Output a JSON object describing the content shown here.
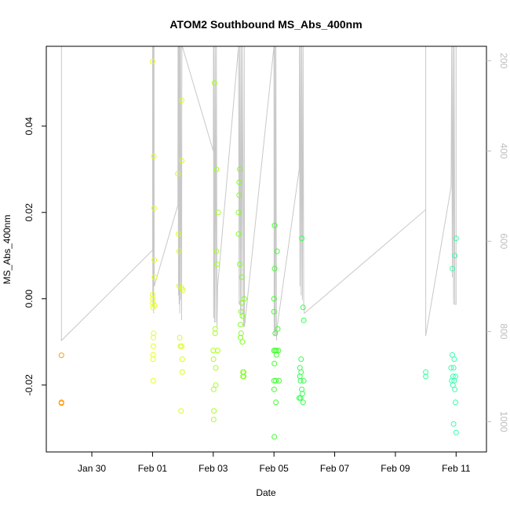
{
  "chart_data": {
    "type": "scatter",
    "title": "ATOM2 Southbound MS_Abs_400nm",
    "xlabel": "Date",
    "ylabel": "MS_Abs_400nm",
    "xlim": [
      "2024-01-28T12:00",
      "2024-02-12T00:00"
    ],
    "ylim": [
      -0.0355,
      0.0585
    ],
    "x_ticks": [
      {
        "date": "2024-01-30",
        "label": "Jan 30"
      },
      {
        "date": "2024-02-01",
        "label": "Feb 01"
      },
      {
        "date": "2024-02-03",
        "label": "Feb 03"
      },
      {
        "date": "2024-02-05",
        "label": "Feb 05"
      },
      {
        "date": "2024-02-07",
        "label": "Feb 07"
      },
      {
        "date": "2024-02-09",
        "label": "Feb 09"
      },
      {
        "date": "2024-02-11",
        "label": "Feb 11"
      }
    ],
    "y_ticks": [
      -0.02,
      0.0,
      0.02,
      0.04
    ],
    "y_tick_labels": [
      "-0.02",
      "0.00",
      "0.02",
      "0.04"
    ],
    "y2_axis": {
      "ylim": [
        1067,
        168
      ],
      "ticks": [
        200,
        400,
        600,
        800,
        1000
      ],
      "tick_labels": [
        "200",
        "400",
        "600",
        "800",
        "1000"
      ],
      "color": "#bdbdbd"
    },
    "grid": false,
    "legend": "none",
    "series": [
      {
        "color": "#ff9900",
        "points": [
          [
            "2024-01-29T00:00",
            -0.0131
          ],
          [
            "2024-01-29T00:00",
            -0.024
          ],
          [
            "2024-01-29T00:00",
            -0.0242
          ]
        ]
      },
      {
        "color": "#e6ff1a",
        "points": [
          [
            "2024-02-01T00:00",
            0.055
          ],
          [
            "2024-02-01T00:05",
            0.001
          ],
          [
            "2024-02-01T00:10",
            0.0
          ],
          [
            "2024-02-01T00:15",
            -0.001
          ],
          [
            "2024-02-01T00:20",
            -0.002
          ],
          [
            "2024-02-01T00:25",
            -0.013
          ],
          [
            "2024-02-01T00:25",
            -0.014
          ],
          [
            "2024-02-01T00:30",
            -0.019
          ],
          [
            "2024-02-01T00:35",
            -0.011
          ],
          [
            "2024-02-01T00:40",
            -0.009
          ],
          [
            "2024-02-01T00:50",
            -0.008
          ],
          [
            "2024-02-01T01:00",
            0.033
          ],
          [
            "2024-02-01T01:10",
            0.021
          ],
          [
            "2024-02-01T01:20",
            0.009
          ],
          [
            "2024-02-01T01:30",
            0.005
          ],
          [
            "2024-02-01T01:40",
            -0.0015
          ]
        ]
      },
      {
        "color": "#d4ff1a",
        "points": [
          [
            "2024-02-01T20:00",
            0.029
          ],
          [
            "2024-02-01T20:30",
            0.015
          ],
          [
            "2024-02-01T21:00",
            0.011
          ],
          [
            "2024-02-01T21:00",
            0.003
          ],
          [
            "2024-02-01T21:30",
            -0.009
          ],
          [
            "2024-02-01T22:00",
            -0.011
          ],
          [
            "2024-02-01T22:30",
            -0.026
          ],
          [
            "2024-02-01T23:00",
            0.046
          ],
          [
            "2024-02-01T23:00",
            0.032
          ],
          [
            "2024-02-01T23:00",
            -0.011
          ],
          [
            "2024-02-01T23:30",
            -0.014
          ],
          [
            "2024-02-01T23:30",
            -0.017
          ],
          [
            "2024-02-02T00:00",
            0.002
          ],
          [
            "2024-02-01T23:00",
            0.0025
          ]
        ]
      },
      {
        "color": "#a6ff1a",
        "points": [
          [
            "2024-02-03T00:00",
            -0.012
          ],
          [
            "2024-02-03T00:10",
            -0.014
          ],
          [
            "2024-02-03T00:20",
            -0.021
          ],
          [
            "2024-02-03T00:20",
            -0.028
          ],
          [
            "2024-02-03T00:30",
            -0.026
          ],
          [
            "2024-02-03T01:00",
            0.05
          ],
          [
            "2024-02-03T01:30",
            -0.007
          ],
          [
            "2024-02-03T01:30",
            -0.008
          ],
          [
            "2024-02-03T02:00",
            -0.016
          ],
          [
            "2024-02-03T02:00",
            -0.02
          ],
          [
            "2024-02-03T02:30",
            0.03
          ],
          [
            "2024-02-03T02:30",
            0.011
          ],
          [
            "2024-02-03T03:00",
            0.008
          ],
          [
            "2024-02-03T03:30",
            -0.012
          ],
          [
            "2024-02-03T04:00",
            0.02
          ]
        ]
      },
      {
        "color": "#7fff1a",
        "points": [
          [
            "2024-02-03T20:00",
            0.02
          ],
          [
            "2024-02-03T20:00",
            0.015
          ],
          [
            "2024-02-03T20:30",
            0.027
          ],
          [
            "2024-02-03T20:30",
            0.024
          ],
          [
            "2024-02-03T21:00",
            0.03
          ],
          [
            "2024-02-03T21:00",
            0.008
          ],
          [
            "2024-02-03T21:30",
            -0.006
          ],
          [
            "2024-02-03T21:30",
            -0.009
          ],
          [
            "2024-02-03T22:00",
            -0.003
          ],
          [
            "2024-02-03T22:00",
            -0.008
          ],
          [
            "2024-02-03T22:30",
            0.005
          ],
          [
            "2024-02-03T22:30",
            -0.001
          ],
          [
            "2024-02-03T23:00",
            -0.004
          ],
          [
            "2024-02-03T23:00",
            -0.01
          ],
          [
            "2024-02-03T23:30",
            -0.017
          ],
          [
            "2024-02-03T23:30",
            -0.018
          ],
          [
            "2024-02-04T00:00",
            -0.017
          ],
          [
            "2024-02-04T00:00",
            -0.018
          ],
          [
            "2024-02-04T00:30",
            0.0
          ]
        ]
      },
      {
        "color": "#3dff29",
        "points": [
          [
            "2024-02-05T00:00",
            0.0
          ],
          [
            "2024-02-05T00:00",
            -0.003
          ],
          [
            "2024-02-05T00:00",
            -0.012
          ],
          [
            "2024-02-05T00:10",
            -0.019
          ],
          [
            "2024-02-05T00:10",
            -0.021
          ],
          [
            "2024-02-05T00:20",
            -0.015
          ],
          [
            "2024-02-05T00:20",
            -0.032
          ],
          [
            "2024-02-05T00:30",
            0.017
          ],
          [
            "2024-02-05T00:30",
            0.007
          ],
          [
            "2024-02-05T01:00",
            -0.008
          ],
          [
            "2024-02-05T01:00",
            -0.012
          ],
          [
            "2024-02-05T01:30",
            -0.019
          ],
          [
            "2024-02-05T01:30",
            -0.024
          ],
          [
            "2024-02-05T02:00",
            -0.012
          ],
          [
            "2024-02-05T02:00",
            -0.013
          ],
          [
            "2024-02-05T02:30",
            0.011
          ],
          [
            "2024-02-05T03:00",
            -0.007
          ],
          [
            "2024-02-05T03:30",
            -0.012
          ],
          [
            "2024-02-05T04:00",
            -0.019
          ]
        ]
      },
      {
        "color": "#33ff4a",
        "points": [
          [
            "2024-02-05T20:00",
            -0.023
          ],
          [
            "2024-02-05T20:30",
            -0.016
          ],
          [
            "2024-02-05T20:30",
            -0.018
          ],
          [
            "2024-02-05T21:00",
            -0.019
          ],
          [
            "2024-02-05T21:00",
            -0.023
          ],
          [
            "2024-02-05T21:30",
            -0.014
          ],
          [
            "2024-02-05T21:30",
            -0.017
          ],
          [
            "2024-02-05T22:00",
            0.014
          ],
          [
            "2024-02-05T22:00",
            -0.021
          ],
          [
            "2024-02-05T22:30",
            -0.022
          ],
          [
            "2024-02-05T23:00",
            -0.002
          ],
          [
            "2024-02-05T23:00",
            -0.024
          ],
          [
            "2024-02-05T23:30",
            -0.005
          ],
          [
            "2024-02-05T23:30",
            -0.019
          ]
        ]
      },
      {
        "color": "#33ff99",
        "points": [
          [
            "2024-02-10T00:00",
            -0.017
          ],
          [
            "2024-02-10T00:00",
            -0.018
          ]
        ]
      },
      {
        "color": "#33ffaa",
        "points": [
          [
            "2024-02-10T20:00",
            -0.016
          ],
          [
            "2024-02-10T20:30",
            -0.019
          ],
          [
            "2024-02-10T21:00",
            -0.013
          ],
          [
            "2024-02-10T21:00",
            0.007
          ],
          [
            "2024-02-10T21:30",
            -0.018
          ],
          [
            "2024-02-10T21:30",
            -0.02
          ],
          [
            "2024-02-10T22:00",
            -0.029
          ],
          [
            "2024-02-10T22:00",
            -0.016
          ],
          [
            "2024-02-10T22:30",
            -0.014
          ],
          [
            "2024-02-10T22:30",
            -0.019
          ],
          [
            "2024-02-10T23:00",
            0.01
          ],
          [
            "2024-02-10T23:00",
            -0.021
          ],
          [
            "2024-02-10T23:30",
            -0.024
          ],
          [
            "2024-02-10T23:30",
            -0.018
          ],
          [
            "2024-02-11T00:00",
            -0.031
          ],
          [
            "2024-02-11T00:00",
            0.014
          ]
        ]
      }
    ],
    "overlay_line": {
      "axis": "y2",
      "color": "#c8c8c8",
      "points": [
        [
          "2024-01-29T00:00",
          168
        ],
        [
          "2024-01-29T00:00",
          820
        ],
        [
          "2024-02-01T00:00",
          620
        ],
        [
          "2024-02-01T00:05",
          168
        ],
        [
          "2024-02-01T00:10",
          720
        ],
        [
          "2024-02-01T00:15",
          168
        ],
        [
          "2024-02-01T00:20",
          740
        ],
        [
          "2024-02-01T00:25",
          168
        ],
        [
          "2024-02-01T00:30",
          730
        ],
        [
          "2024-02-01T00:35",
          168
        ],
        [
          "2024-02-01T00:40",
          700
        ],
        [
          "2024-02-01T00:45",
          168
        ],
        [
          "2024-02-01T00:50",
          760
        ],
        [
          "2024-02-01T00:55",
          168
        ],
        [
          "2024-02-01T01:00",
          680
        ],
        [
          "2024-02-01T01:10",
          168
        ],
        [
          "2024-02-01T01:20",
          700
        ],
        [
          "2024-02-01T20:00",
          520
        ],
        [
          "2024-02-01T20:10",
          168
        ],
        [
          "2024-02-01T20:30",
          720
        ],
        [
          "2024-02-01T20:40",
          168
        ],
        [
          "2024-02-01T21:00",
          740
        ],
        [
          "2024-02-01T21:10",
          168
        ],
        [
          "2024-02-01T21:30",
          760
        ],
        [
          "2024-02-01T21:40",
          168
        ],
        [
          "2024-02-01T22:00",
          730
        ],
        [
          "2024-02-01T22:10",
          168
        ],
        [
          "2024-02-01T23:00",
          775
        ],
        [
          "2024-02-01T23:10",
          168
        ],
        [
          "2024-02-01T23:30",
          168
        ],
        [
          "2024-02-03T00:00",
          400
        ],
        [
          "2024-02-03T00:10",
          168
        ],
        [
          "2024-02-03T00:20",
          770
        ],
        [
          "2024-02-03T00:30",
          168
        ],
        [
          "2024-02-03T01:00",
          780
        ],
        [
          "2024-02-03T01:30",
          168
        ],
        [
          "2024-02-03T02:00",
          780
        ],
        [
          "2024-02-03T02:30",
          168
        ],
        [
          "2024-02-03T03:00",
          790
        ],
        [
          "2024-02-03T03:30",
          700
        ],
        [
          "2024-02-03T20:00",
          168
        ],
        [
          "2024-02-03T20:30",
          740
        ],
        [
          "2024-02-03T21:00",
          168
        ],
        [
          "2024-02-03T21:30",
          760
        ],
        [
          "2024-02-03T22:00",
          168
        ],
        [
          "2024-02-03T22:30",
          770
        ],
        [
          "2024-02-03T23:00",
          168
        ],
        [
          "2024-02-04T00:00",
          790
        ],
        [
          "2024-02-04T00:30",
          168
        ],
        [
          "2024-02-04T00:40",
          790
        ],
        [
          "2024-02-05T00:00",
          168
        ],
        [
          "2024-02-05T00:10",
          800
        ],
        [
          "2024-02-05T00:20",
          168
        ],
        [
          "2024-02-05T00:30",
          810
        ],
        [
          "2024-02-05T00:40",
          168
        ],
        [
          "2024-02-05T01:00",
          810
        ],
        [
          "2024-02-05T01:30",
          168
        ],
        [
          "2024-02-05T02:00",
          820
        ],
        [
          "2024-02-05T02:30",
          790
        ],
        [
          "2024-02-05T20:00",
          440
        ],
        [
          "2024-02-05T20:10",
          168
        ],
        [
          "2024-02-05T20:30",
          700
        ],
        [
          "2024-02-05T21:00",
          168
        ],
        [
          "2024-02-05T21:30",
          720
        ],
        [
          "2024-02-05T22:00",
          168
        ],
        [
          "2024-02-05T22:30",
          730
        ],
        [
          "2024-02-05T23:00",
          168
        ],
        [
          "2024-02-05T23:30",
          740
        ],
        [
          "2024-02-06T00:00",
          760
        ],
        [
          "2024-02-10T00:00",
          530
        ],
        [
          "2024-02-10T00:00",
          168
        ],
        [
          "2024-02-10T00:00",
          810
        ],
        [
          "2024-02-10T20:00",
          480
        ],
        [
          "2024-02-10T20:30",
          168
        ],
        [
          "2024-02-10T21:00",
          680
        ],
        [
          "2024-02-10T21:30",
          168
        ],
        [
          "2024-02-10T22:00",
          740
        ],
        [
          "2024-02-10T22:30",
          168
        ],
        [
          "2024-02-10T23:00",
          740
        ],
        [
          "2024-02-11T00:00",
          740
        ],
        [
          "2024-02-11T00:00",
          168
        ]
      ]
    }
  }
}
